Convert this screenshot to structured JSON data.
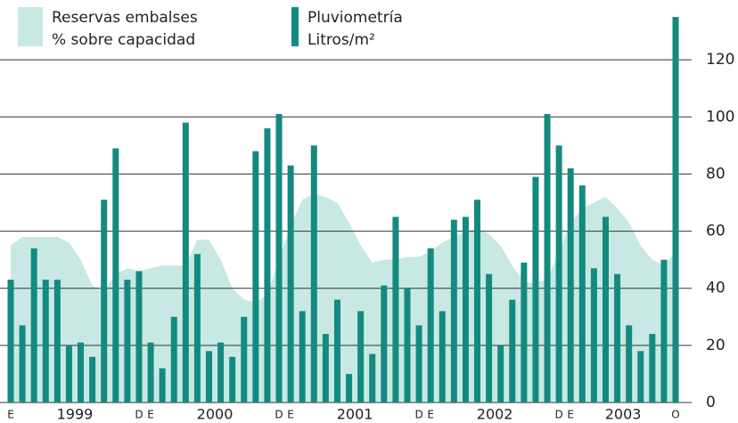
{
  "chart_data": {
    "type": "bar_area",
    "legend": {
      "area_label": [
        "Reservas embalses",
        "% sobre capacidad"
      ],
      "bar_label": [
        "Pluviometría",
        "Litros/m²"
      ]
    },
    "categories": [
      "E",
      null,
      null,
      null,
      null,
      null,
      null,
      null,
      null,
      null,
      null,
      "D",
      "E",
      null,
      null,
      null,
      null,
      null,
      null,
      null,
      null,
      null,
      null,
      "D",
      "E",
      null,
      null,
      null,
      null,
      null,
      null,
      null,
      null,
      null,
      null,
      "D",
      "E",
      null,
      null,
      null,
      null,
      null,
      null,
      null,
      null,
      null,
      null,
      "D",
      "E",
      null,
      null,
      null,
      null,
      null,
      null,
      null,
      null,
      "O"
    ],
    "years": [
      "1999",
      "2000",
      "2001",
      "2002",
      "2003"
    ],
    "series": [
      {
        "name": "Reservas embalses % sobre capacidad",
        "type": "area",
        "color": "#c8e9e3",
        "values": [
          55,
          58,
          58,
          58,
          58,
          56,
          50,
          41,
          39,
          45,
          47,
          46,
          47,
          48,
          48,
          48,
          57,
          57,
          50,
          40,
          36,
          35,
          38,
          50,
          62,
          71,
          73,
          72,
          70,
          63,
          55,
          49,
          50,
          50,
          51,
          51,
          53,
          56,
          58,
          60,
          61,
          59,
          55,
          48,
          42,
          42,
          43,
          53,
          63,
          68,
          70,
          72,
          68,
          63,
          55,
          50,
          48,
          53
        ]
      },
      {
        "name": "Pluviometría Litros/m²",
        "type": "bar",
        "color": "#138a80",
        "values": [
          43,
          27,
          54,
          43,
          43,
          20,
          21,
          16,
          71,
          89,
          43,
          46,
          21,
          12,
          30,
          98,
          52,
          18,
          21,
          16,
          30,
          88,
          96,
          101,
          83,
          32,
          90,
          24,
          36,
          10,
          32,
          17,
          41,
          65,
          40,
          27,
          54,
          32,
          64,
          65,
          71,
          45,
          20,
          36,
          49,
          79,
          101,
          90,
          82,
          76,
          47,
          65,
          45,
          27,
          18,
          24,
          50,
          135
        ]
      }
    ],
    "ylim": [
      0,
      140
    ],
    "yticks": [
      0,
      20,
      40,
      60,
      80,
      100,
      120
    ],
    "grid": true
  }
}
